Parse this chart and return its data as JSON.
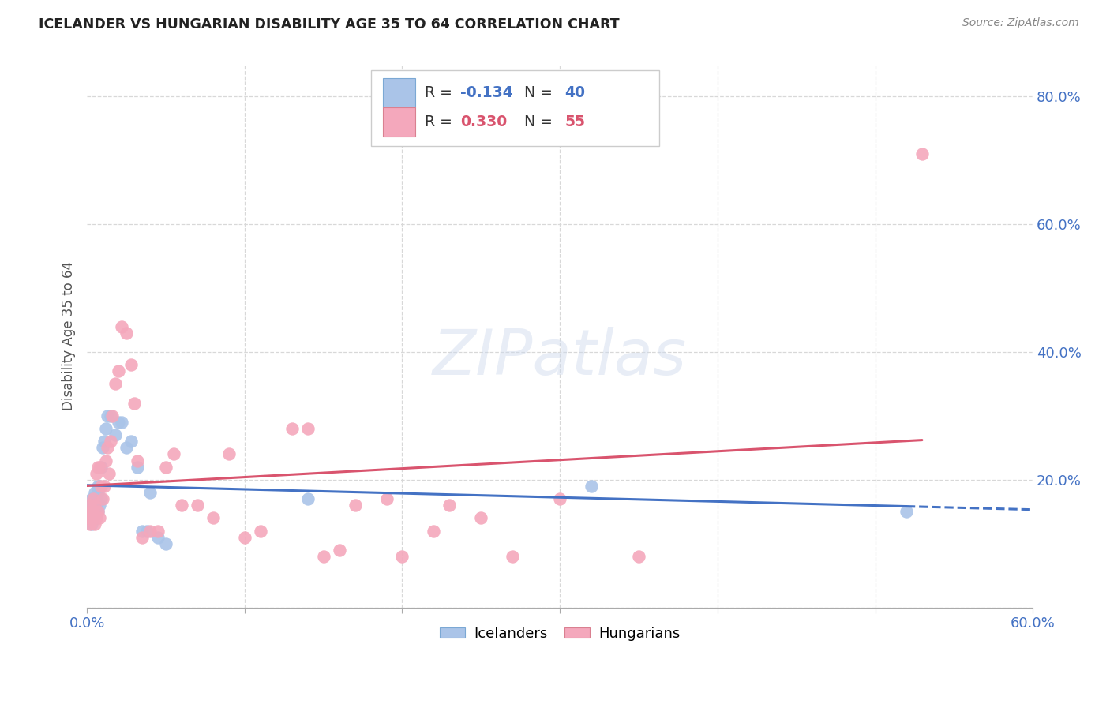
{
  "title": "ICELANDER VS HUNGARIAN DISABILITY AGE 35 TO 64 CORRELATION CHART",
  "source": "Source: ZipAtlas.com",
  "ylabel_label": "Disability Age 35 to 64",
  "xlim": [
    0.0,
    0.6
  ],
  "ylim": [
    0.0,
    0.85
  ],
  "legend_r_icelanders": "-0.134",
  "legend_n_icelanders": "40",
  "legend_r_hungarians": "0.330",
  "legend_n_hungarians": "55",
  "icelander_color": "#aac4e8",
  "hungarian_color": "#f4a8bc",
  "icelander_line_color": "#4472C4",
  "hungarian_line_color": "#d9546e",
  "background_color": "#ffffff",
  "grid_color": "#d8d8d8",
  "icelanders_x": [
    0.001,
    0.002,
    0.002,
    0.003,
    0.003,
    0.003,
    0.004,
    0.004,
    0.004,
    0.005,
    0.005,
    0.005,
    0.006,
    0.006,
    0.007,
    0.007,
    0.007,
    0.008,
    0.008,
    0.009,
    0.009,
    0.01,
    0.011,
    0.012,
    0.013,
    0.015,
    0.018,
    0.02,
    0.022,
    0.025,
    0.028,
    0.032,
    0.035,
    0.038,
    0.04,
    0.045,
    0.05,
    0.14,
    0.32,
    0.52
  ],
  "icelanders_y": [
    0.14,
    0.15,
    0.16,
    0.13,
    0.16,
    0.17,
    0.15,
    0.16,
    0.14,
    0.15,
    0.17,
    0.18,
    0.16,
    0.17,
    0.15,
    0.18,
    0.19,
    0.16,
    0.19,
    0.22,
    0.17,
    0.25,
    0.26,
    0.28,
    0.3,
    0.3,
    0.27,
    0.29,
    0.29,
    0.25,
    0.26,
    0.22,
    0.12,
    0.12,
    0.18,
    0.11,
    0.1,
    0.17,
    0.19,
    0.15
  ],
  "hungarians_x": [
    0.001,
    0.002,
    0.002,
    0.003,
    0.003,
    0.004,
    0.004,
    0.005,
    0.005,
    0.006,
    0.006,
    0.007,
    0.007,
    0.008,
    0.008,
    0.009,
    0.01,
    0.011,
    0.012,
    0.013,
    0.014,
    0.015,
    0.016,
    0.018,
    0.02,
    0.022,
    0.025,
    0.028,
    0.03,
    0.032,
    0.035,
    0.04,
    0.045,
    0.05,
    0.055,
    0.06,
    0.07,
    0.08,
    0.09,
    0.1,
    0.11,
    0.13,
    0.14,
    0.15,
    0.16,
    0.17,
    0.19,
    0.2,
    0.22,
    0.23,
    0.25,
    0.27,
    0.3,
    0.35,
    0.53
  ],
  "hungarians_y": [
    0.14,
    0.13,
    0.16,
    0.14,
    0.15,
    0.15,
    0.17,
    0.16,
    0.13,
    0.14,
    0.21,
    0.15,
    0.22,
    0.14,
    0.22,
    0.19,
    0.17,
    0.19,
    0.23,
    0.25,
    0.21,
    0.26,
    0.3,
    0.35,
    0.37,
    0.44,
    0.43,
    0.38,
    0.32,
    0.23,
    0.11,
    0.12,
    0.12,
    0.22,
    0.24,
    0.16,
    0.16,
    0.14,
    0.24,
    0.11,
    0.12,
    0.28,
    0.28,
    0.08,
    0.09,
    0.16,
    0.17,
    0.08,
    0.12,
    0.16,
    0.14,
    0.08,
    0.17,
    0.08,
    0.71
  ],
  "watermark_text": "ZIPatlas",
  "ytick_values": [
    0.0,
    0.2,
    0.4,
    0.6,
    0.8
  ],
  "ytick_labels": [
    "",
    "20.0%",
    "40.0%",
    "60.0%",
    "80.0%"
  ],
  "xtick_values": [
    0.0,
    0.1,
    0.2,
    0.3,
    0.4,
    0.5,
    0.6
  ],
  "xtick_labels": [
    "0.0%",
    "",
    "",
    "",
    "",
    "",
    "60.0%"
  ]
}
